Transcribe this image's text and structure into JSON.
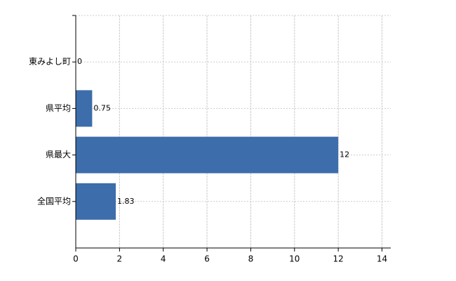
{
  "chart_data": {
    "type": "bar",
    "orientation": "horizontal",
    "categories": [
      "東みよし町",
      "県平均",
      "県最大",
      "全国平均"
    ],
    "values": [
      0,
      0.75,
      12,
      1.83
    ],
    "color": "#3d6dab",
    "xlim": [
      0,
      14.4
    ],
    "xticks": [
      0,
      2,
      4,
      6,
      8,
      10,
      12,
      14
    ],
    "grid": true
  }
}
